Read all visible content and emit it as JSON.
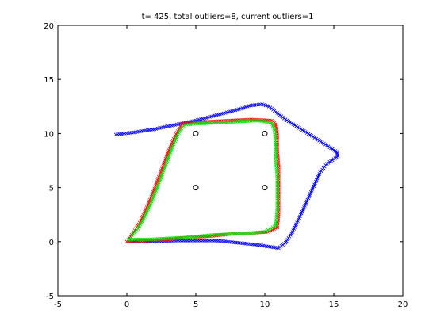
{
  "chart_data": {
    "type": "scatter",
    "title": "t= 425, total outliers=8, current outliers=1",
    "xlabel": "",
    "ylabel": "",
    "xlim": [
      -5,
      20
    ],
    "ylim": [
      -5,
      20
    ],
    "xticks": [
      -5,
      0,
      5,
      10,
      15,
      20
    ],
    "yticks": [
      -5,
      0,
      5,
      10,
      15,
      20
    ],
    "grid": false,
    "series": [
      {
        "color": "#0000ff",
        "marker": "x",
        "values": [
          [
            -0.8,
            9.9
          ],
          [
            0.5,
            10.1
          ],
          [
            2.0,
            10.4
          ],
          [
            3.5,
            10.8
          ],
          [
            5.0,
            11.2
          ],
          [
            6.5,
            11.7
          ],
          [
            8.0,
            12.2
          ],
          [
            9.0,
            12.6
          ],
          [
            9.8,
            12.7
          ],
          [
            10.3,
            12.5
          ],
          [
            10.8,
            12.0
          ],
          [
            11.5,
            11.3
          ],
          [
            12.5,
            10.5
          ],
          [
            13.5,
            9.7
          ],
          [
            14.5,
            8.9
          ],
          [
            15.2,
            8.3
          ],
          [
            15.3,
            7.9
          ],
          [
            14.5,
            7.2
          ],
          [
            14.0,
            6.4
          ],
          [
            13.5,
            5.0
          ],
          [
            13.0,
            3.6
          ],
          [
            12.5,
            2.2
          ],
          [
            12.0,
            0.9
          ],
          [
            11.5,
            -0.1
          ],
          [
            11.0,
            -0.6
          ],
          [
            10.5,
            -0.5
          ],
          [
            9.5,
            -0.3
          ],
          [
            8.0,
            -0.1
          ],
          [
            6.5,
            0.1
          ],
          [
            5.0,
            0.1
          ],
          [
            3.5,
            0.1
          ],
          [
            2.0,
            0.0
          ],
          [
            0.8,
            0.0
          ],
          [
            0.0,
            0.0
          ]
        ]
      },
      {
        "color": "#ff0000",
        "marker": "x",
        "values": [
          [
            0.0,
            0.0
          ],
          [
            1.5,
            0.1
          ],
          [
            3.0,
            0.2
          ],
          [
            4.5,
            0.4
          ],
          [
            6.0,
            0.5
          ],
          [
            7.5,
            0.7
          ],
          [
            9.0,
            0.8
          ],
          [
            10.2,
            0.9
          ],
          [
            10.9,
            1.3
          ],
          [
            11.0,
            2.5
          ],
          [
            11.0,
            4.0
          ],
          [
            11.0,
            5.5
          ],
          [
            11.0,
            7.0
          ],
          [
            10.9,
            8.5
          ],
          [
            10.9,
            10.0
          ],
          [
            10.8,
            10.9
          ],
          [
            10.5,
            11.2
          ],
          [
            9.0,
            11.3
          ],
          [
            7.5,
            11.2
          ],
          [
            6.0,
            11.1
          ],
          [
            4.5,
            11.0
          ],
          [
            4.0,
            10.9
          ],
          [
            3.5,
            9.8
          ],
          [
            3.0,
            8.3
          ],
          [
            2.5,
            6.6
          ],
          [
            2.0,
            4.9
          ],
          [
            1.5,
            3.3
          ],
          [
            1.0,
            1.9
          ],
          [
            0.5,
            0.9
          ],
          [
            0.1,
            0.2
          ]
        ]
      },
      {
        "color": "#00dd00",
        "marker": "x",
        "values": [
          [
            0.1,
            0.2
          ],
          [
            1.5,
            0.2
          ],
          [
            3.0,
            0.3
          ],
          [
            4.5,
            0.4
          ],
          [
            6.0,
            0.6
          ],
          [
            7.5,
            0.7
          ],
          [
            9.0,
            0.8
          ],
          [
            10.0,
            0.9
          ],
          [
            10.8,
            1.5
          ],
          [
            10.9,
            3.0
          ],
          [
            10.9,
            4.5
          ],
          [
            10.9,
            6.0
          ],
          [
            10.8,
            7.5
          ],
          [
            10.8,
            9.0
          ],
          [
            10.7,
            10.3
          ],
          [
            10.5,
            11.0
          ],
          [
            9.5,
            11.2
          ],
          [
            8.0,
            11.1
          ],
          [
            6.5,
            11.0
          ],
          [
            5.0,
            10.9
          ],
          [
            4.2,
            10.8
          ],
          [
            3.8,
            10.2
          ],
          [
            3.3,
            8.7
          ],
          [
            2.8,
            7.0
          ],
          [
            2.3,
            5.3
          ],
          [
            1.8,
            3.7
          ],
          [
            1.3,
            2.3
          ],
          [
            0.8,
            1.2
          ],
          [
            0.3,
            0.5
          ]
        ]
      },
      {
        "color": "#000000",
        "marker": "o",
        "values": [
          [
            5,
            10
          ],
          [
            10,
            10
          ],
          [
            5,
            5
          ],
          [
            10,
            5
          ]
        ]
      }
    ]
  }
}
